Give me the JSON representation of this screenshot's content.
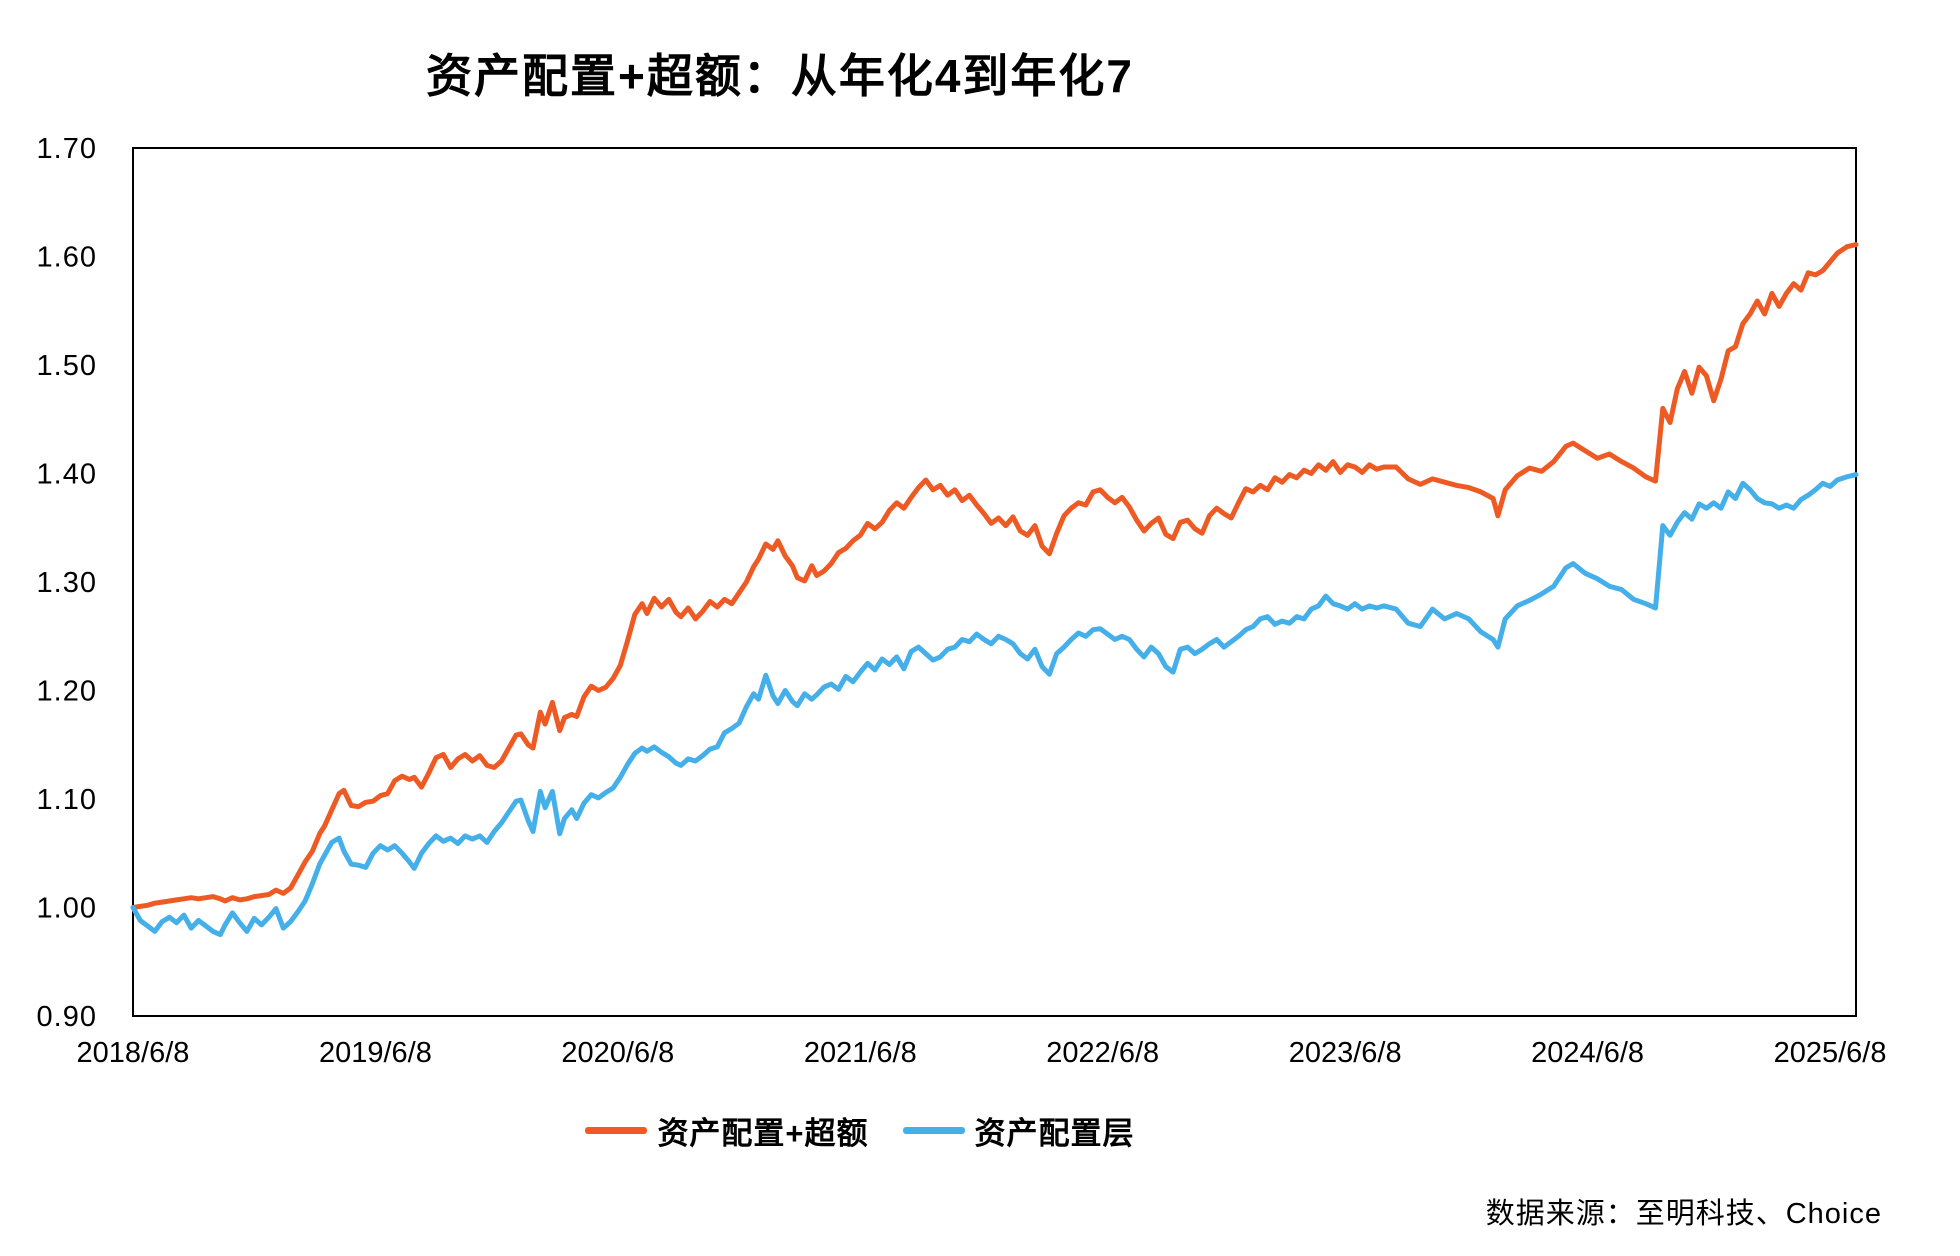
{
  "title": "资产配置+超额：从年化4到年化7",
  "source_note": "数据来源：至明科技、Choice",
  "colors": {
    "series_excess": "#EE5A24",
    "series_allocation": "#45AFE9",
    "axis": "#000000",
    "text": "#000000",
    "background": "#FFFFFF"
  },
  "chart_data": {
    "type": "line",
    "title": "资产配置+超额：从年化4到年化7",
    "xlabel": "",
    "ylabel": "",
    "grid": false,
    "legend_position": "bottom",
    "x_axis": {
      "tick_labels": [
        "2018/6/8",
        "2019/6/8",
        "2020/6/8",
        "2021/6/8",
        "2022/6/8",
        "2023/6/8",
        "2024/6/8",
        "2025/6/8"
      ],
      "tick_positions_years": [
        0,
        1,
        2,
        3,
        4,
        5,
        6,
        7
      ],
      "range_years": [
        0,
        7.107
      ],
      "x_unit": "years since 2018/6/8"
    },
    "y_axis": {
      "min": 0.9,
      "max": 1.7,
      "tick_step": 0.1,
      "tick_labels": [
        "0.90",
        "1.00",
        "1.10",
        "1.20",
        "1.30",
        "1.40",
        "1.50",
        "1.60",
        "1.70"
      ]
    },
    "series": [
      {
        "name": "资产配置+超额",
        "color": "#EE5A24",
        "start_value": 1.0,
        "end_value": 1.61
      },
      {
        "name": "资产配置层",
        "color": "#45AFE9",
        "start_value": 1.0,
        "end_value": 1.4
      }
    ],
    "points": [
      [
        0.0,
        1.0,
        1.0
      ],
      [
        0.03,
        1.001,
        0.988
      ],
      [
        0.06,
        1.002,
        0.983
      ],
      [
        0.09,
        1.004,
        0.978
      ],
      [
        0.12,
        1.005,
        0.987
      ],
      [
        0.15,
        1.006,
        0.991
      ],
      [
        0.18,
        1.007,
        0.986
      ],
      [
        0.21,
        1.008,
        0.993
      ],
      [
        0.24,
        1.009,
        0.981
      ],
      [
        0.27,
        1.008,
        0.988
      ],
      [
        0.3,
        1.009,
        0.983
      ],
      [
        0.33,
        1.01,
        0.978
      ],
      [
        0.36,
        1.008,
        0.975
      ],
      [
        0.38,
        1.006,
        0.984
      ],
      [
        0.41,
        1.009,
        0.995
      ],
      [
        0.44,
        1.007,
        0.986
      ],
      [
        0.47,
        1.008,
        0.978
      ],
      [
        0.5,
        1.01,
        0.99
      ],
      [
        0.53,
        1.011,
        0.984
      ],
      [
        0.56,
        1.012,
        0.991
      ],
      [
        0.59,
        1.016,
        0.999
      ],
      [
        0.62,
        1.013,
        0.981
      ],
      [
        0.65,
        1.018,
        0.987
      ],
      [
        0.68,
        1.03,
        0.996
      ],
      [
        0.71,
        1.042,
        1.006
      ],
      [
        0.74,
        1.052,
        1.022
      ],
      [
        0.77,
        1.068,
        1.04
      ],
      [
        0.79,
        1.075,
        1.048
      ],
      [
        0.82,
        1.09,
        1.06
      ],
      [
        0.85,
        1.105,
        1.064
      ],
      [
        0.87,
        1.108,
        1.052
      ],
      [
        0.9,
        1.094,
        1.04
      ],
      [
        0.93,
        1.093,
        1.039
      ],
      [
        0.96,
        1.097,
        1.037
      ],
      [
        0.99,
        1.098,
        1.05
      ],
      [
        1.02,
        1.103,
        1.057
      ],
      [
        1.05,
        1.105,
        1.053
      ],
      [
        1.08,
        1.117,
        1.057
      ],
      [
        1.11,
        1.121,
        1.05
      ],
      [
        1.14,
        1.118,
        1.042
      ],
      [
        1.16,
        1.12,
        1.036
      ],
      [
        1.19,
        1.111,
        1.05
      ],
      [
        1.22,
        1.124,
        1.059
      ],
      [
        1.25,
        1.138,
        1.066
      ],
      [
        1.28,
        1.141,
        1.061
      ],
      [
        1.31,
        1.129,
        1.064
      ],
      [
        1.34,
        1.137,
        1.059
      ],
      [
        1.37,
        1.141,
        1.066
      ],
      [
        1.4,
        1.135,
        1.063
      ],
      [
        1.43,
        1.14,
        1.066
      ],
      [
        1.46,
        1.131,
        1.06
      ],
      [
        1.49,
        1.129,
        1.07
      ],
      [
        1.52,
        1.135,
        1.078
      ],
      [
        1.55,
        1.147,
        1.088
      ],
      [
        1.58,
        1.159,
        1.098
      ],
      [
        1.6,
        1.16,
        1.099
      ],
      [
        1.63,
        1.15,
        1.08
      ],
      [
        1.65,
        1.147,
        1.07
      ],
      [
        1.68,
        1.18,
        1.107
      ],
      [
        1.7,
        1.169,
        1.092
      ],
      [
        1.73,
        1.189,
        1.107
      ],
      [
        1.76,
        1.163,
        1.068
      ],
      [
        1.78,
        1.175,
        1.082
      ],
      [
        1.81,
        1.178,
        1.09
      ],
      [
        1.83,
        1.176,
        1.082
      ],
      [
        1.86,
        1.194,
        1.096
      ],
      [
        1.89,
        1.204,
        1.104
      ],
      [
        1.92,
        1.2,
        1.101
      ],
      [
        1.95,
        1.203,
        1.106
      ],
      [
        1.98,
        1.211,
        1.11
      ],
      [
        2.01,
        1.223,
        1.12
      ],
      [
        2.04,
        1.246,
        1.132
      ],
      [
        2.07,
        1.27,
        1.142
      ],
      [
        2.1,
        1.28,
        1.147
      ],
      [
        2.12,
        1.271,
        1.144
      ],
      [
        2.15,
        1.285,
        1.148
      ],
      [
        2.18,
        1.277,
        1.143
      ],
      [
        2.21,
        1.284,
        1.139
      ],
      [
        2.24,
        1.272,
        1.133
      ],
      [
        2.26,
        1.268,
        1.131
      ],
      [
        2.29,
        1.276,
        1.137
      ],
      [
        2.32,
        1.266,
        1.135
      ],
      [
        2.35,
        1.273,
        1.14
      ],
      [
        2.38,
        1.282,
        1.146
      ],
      [
        2.41,
        1.277,
        1.148
      ],
      [
        2.44,
        1.284,
        1.161
      ],
      [
        2.47,
        1.28,
        1.165
      ],
      [
        2.5,
        1.29,
        1.17
      ],
      [
        2.53,
        1.3,
        1.185
      ],
      [
        2.56,
        1.314,
        1.197
      ],
      [
        2.58,
        1.321,
        1.192
      ],
      [
        2.61,
        1.335,
        1.214
      ],
      [
        2.64,
        1.33,
        1.195
      ],
      [
        2.66,
        1.338,
        1.188
      ],
      [
        2.69,
        1.324,
        1.2
      ],
      [
        2.72,
        1.315,
        1.19
      ],
      [
        2.74,
        1.304,
        1.186
      ],
      [
        2.77,
        1.301,
        1.197
      ],
      [
        2.8,
        1.315,
        1.192
      ],
      [
        2.82,
        1.306,
        1.196
      ],
      [
        2.85,
        1.31,
        1.203
      ],
      [
        2.88,
        1.317,
        1.206
      ],
      [
        2.91,
        1.327,
        1.201
      ],
      [
        2.94,
        1.331,
        1.213
      ],
      [
        2.97,
        1.338,
        1.208
      ],
      [
        3.0,
        1.343,
        1.217
      ],
      [
        3.03,
        1.354,
        1.225
      ],
      [
        3.06,
        1.349,
        1.219
      ],
      [
        3.09,
        1.355,
        1.229
      ],
      [
        3.12,
        1.366,
        1.224
      ],
      [
        3.15,
        1.373,
        1.231
      ],
      [
        3.18,
        1.368,
        1.22
      ],
      [
        3.21,
        1.378,
        1.236
      ],
      [
        3.24,
        1.387,
        1.24
      ],
      [
        3.27,
        1.394,
        1.234
      ],
      [
        3.3,
        1.385,
        1.228
      ],
      [
        3.33,
        1.389,
        1.231
      ],
      [
        3.36,
        1.38,
        1.238
      ],
      [
        3.39,
        1.385,
        1.24
      ],
      [
        3.42,
        1.375,
        1.247
      ],
      [
        3.45,
        1.38,
        1.245
      ],
      [
        3.48,
        1.371,
        1.252
      ],
      [
        3.51,
        1.363,
        1.247
      ],
      [
        3.54,
        1.354,
        1.243
      ],
      [
        3.57,
        1.359,
        1.25
      ],
      [
        3.6,
        1.352,
        1.247
      ],
      [
        3.63,
        1.36,
        1.243
      ],
      [
        3.66,
        1.347,
        1.234
      ],
      [
        3.69,
        1.343,
        1.229
      ],
      [
        3.72,
        1.352,
        1.238
      ],
      [
        3.75,
        1.333,
        1.222
      ],
      [
        3.78,
        1.326,
        1.215
      ],
      [
        3.81,
        1.345,
        1.234
      ],
      [
        3.84,
        1.361,
        1.24
      ],
      [
        3.87,
        1.368,
        1.247
      ],
      [
        3.9,
        1.373,
        1.253
      ],
      [
        3.93,
        1.371,
        1.25
      ],
      [
        3.96,
        1.383,
        1.256
      ],
      [
        3.99,
        1.385,
        1.257
      ],
      [
        4.02,
        1.378,
        1.252
      ],
      [
        4.05,
        1.373,
        1.247
      ],
      [
        4.08,
        1.378,
        1.25
      ],
      [
        4.11,
        1.369,
        1.247
      ],
      [
        4.14,
        1.357,
        1.238
      ],
      [
        4.17,
        1.347,
        1.231
      ],
      [
        4.2,
        1.354,
        1.24
      ],
      [
        4.23,
        1.359,
        1.234
      ],
      [
        4.26,
        1.344,
        1.222
      ],
      [
        4.29,
        1.34,
        1.217
      ],
      [
        4.32,
        1.355,
        1.238
      ],
      [
        4.35,
        1.357,
        1.24
      ],
      [
        4.38,
        1.349,
        1.234
      ],
      [
        4.41,
        1.345,
        1.238
      ],
      [
        4.44,
        1.361,
        1.243
      ],
      [
        4.47,
        1.368,
        1.247
      ],
      [
        4.5,
        1.363,
        1.24
      ],
      [
        4.53,
        1.359,
        1.245
      ],
      [
        4.56,
        1.373,
        1.25
      ],
      [
        4.59,
        1.386,
        1.256
      ],
      [
        4.62,
        1.383,
        1.259
      ],
      [
        4.65,
        1.389,
        1.266
      ],
      [
        4.68,
        1.385,
        1.268
      ],
      [
        4.71,
        1.396,
        1.261
      ],
      [
        4.74,
        1.392,
        1.264
      ],
      [
        4.77,
        1.399,
        1.262
      ],
      [
        4.8,
        1.396,
        1.268
      ],
      [
        4.83,
        1.403,
        1.266
      ],
      [
        4.86,
        1.4,
        1.275
      ],
      [
        4.89,
        1.408,
        1.278
      ],
      [
        4.92,
        1.403,
        1.287
      ],
      [
        4.95,
        1.411,
        1.28
      ],
      [
        4.98,
        1.401,
        1.278
      ],
      [
        5.01,
        1.408,
        1.275
      ],
      [
        5.04,
        1.406,
        1.28
      ],
      [
        5.07,
        1.401,
        1.275
      ],
      [
        5.1,
        1.408,
        1.278
      ],
      [
        5.13,
        1.404,
        1.276
      ],
      [
        5.16,
        1.406,
        1.278
      ],
      [
        5.21,
        1.406,
        1.275
      ],
      [
        5.26,
        1.395,
        1.262
      ],
      [
        5.31,
        1.39,
        1.259
      ],
      [
        5.36,
        1.395,
        1.275
      ],
      [
        5.41,
        1.392,
        1.266
      ],
      [
        5.46,
        1.389,
        1.271
      ],
      [
        5.51,
        1.387,
        1.266
      ],
      [
        5.56,
        1.383,
        1.254
      ],
      [
        5.61,
        1.377,
        1.247
      ],
      [
        5.63,
        1.361,
        1.24
      ],
      [
        5.66,
        1.385,
        1.266
      ],
      [
        5.71,
        1.398,
        1.278
      ],
      [
        5.76,
        1.405,
        1.283
      ],
      [
        5.81,
        1.402,
        1.289
      ],
      [
        5.86,
        1.411,
        1.296
      ],
      [
        5.91,
        1.425,
        1.313
      ],
      [
        5.94,
        1.428,
        1.317
      ],
      [
        5.99,
        1.421,
        1.308
      ],
      [
        6.04,
        1.414,
        1.303
      ],
      [
        6.09,
        1.418,
        1.296
      ],
      [
        6.14,
        1.411,
        1.293
      ],
      [
        6.19,
        1.405,
        1.284
      ],
      [
        6.24,
        1.397,
        1.28
      ],
      [
        6.28,
        1.393,
        1.276
      ],
      [
        6.31,
        1.46,
        1.352
      ],
      [
        6.34,
        1.447,
        1.343
      ],
      [
        6.37,
        1.478,
        1.355
      ],
      [
        6.4,
        1.494,
        1.364
      ],
      [
        6.43,
        1.474,
        1.358
      ],
      [
        6.46,
        1.498,
        1.372
      ],
      [
        6.49,
        1.49,
        1.368
      ],
      [
        6.52,
        1.467,
        1.373
      ],
      [
        6.55,
        1.487,
        1.368
      ],
      [
        6.58,
        1.513,
        1.383
      ],
      [
        6.61,
        1.517,
        1.377
      ],
      [
        6.64,
        1.538,
        1.391
      ],
      [
        6.67,
        1.547,
        1.385
      ],
      [
        6.7,
        1.559,
        1.377
      ],
      [
        6.73,
        1.547,
        1.373
      ],
      [
        6.76,
        1.566,
        1.372
      ],
      [
        6.79,
        1.554,
        1.368
      ],
      [
        6.82,
        1.566,
        1.371
      ],
      [
        6.85,
        1.575,
        1.368
      ],
      [
        6.88,
        1.569,
        1.376
      ],
      [
        6.91,
        1.585,
        1.38
      ],
      [
        6.94,
        1.583,
        1.385
      ],
      [
        6.97,
        1.587,
        1.391
      ],
      [
        7.0,
        1.595,
        1.388
      ],
      [
        7.03,
        1.603,
        1.394
      ],
      [
        7.07,
        1.609,
        1.397
      ],
      [
        7.107,
        1.611,
        1.399
      ]
    ]
  }
}
